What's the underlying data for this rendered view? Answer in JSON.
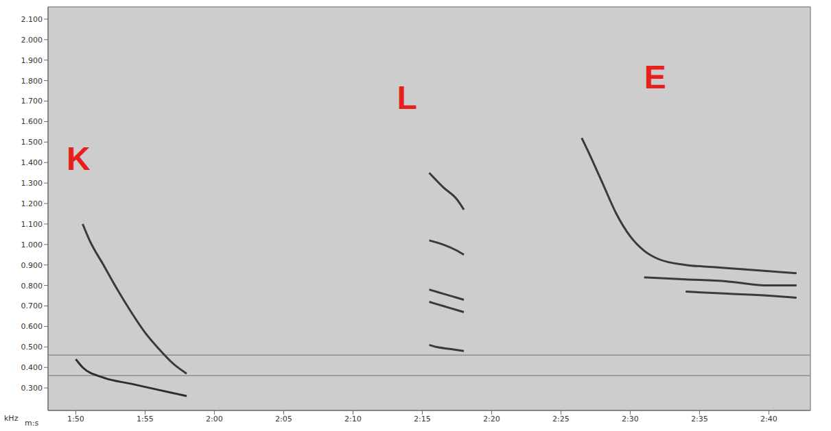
{
  "chart_data": {
    "type": "line",
    "x_label": "m:s",
    "y_label": "kHz",
    "xlim": [
      108,
      163
    ],
    "ylim": [
      0.19,
      2.16
    ],
    "xticks": [
      {
        "value": 110,
        "label": "1:50"
      },
      {
        "value": 115,
        "label": "1:55"
      },
      {
        "value": 120,
        "label": "2:00"
      },
      {
        "value": 125,
        "label": "2:05"
      },
      {
        "value": 130,
        "label": "2:10"
      },
      {
        "value": 135,
        "label": "2:15"
      },
      {
        "value": 140,
        "label": "2:20"
      },
      {
        "value": 145,
        "label": "2:25"
      },
      {
        "value": 150,
        "label": "2:30"
      },
      {
        "value": 155,
        "label": "2:35"
      },
      {
        "value": 160,
        "label": "2:40"
      }
    ],
    "yticks": [
      {
        "value": 0.3,
        "label": "0.300"
      },
      {
        "value": 0.4,
        "label": "0.400"
      },
      {
        "value": 0.5,
        "label": "0.500"
      },
      {
        "value": 0.6,
        "label": "0.600"
      },
      {
        "value": 0.7,
        "label": "0.700"
      },
      {
        "value": 0.8,
        "label": "0.800"
      },
      {
        "value": 0.9,
        "label": "0.900"
      },
      {
        "value": 1.0,
        "label": "1.000"
      },
      {
        "value": 1.1,
        "label": "1.100"
      },
      {
        "value": 1.2,
        "label": "1.200"
      },
      {
        "value": 1.3,
        "label": "1.300"
      },
      {
        "value": 1.4,
        "label": "1.400"
      },
      {
        "value": 1.5,
        "label": "1.500"
      },
      {
        "value": 1.6,
        "label": "1.600"
      },
      {
        "value": 1.7,
        "label": "1.700"
      },
      {
        "value": 1.8,
        "label": "1.800"
      },
      {
        "value": 1.9,
        "label": "1.900"
      },
      {
        "value": 2.0,
        "label": "2.000"
      },
      {
        "value": 2.1,
        "label": "2.100"
      }
    ],
    "grid": false,
    "series": [
      {
        "color": "#909090",
        "x": [
          108,
          163
        ],
        "values": [
          0.46,
          0.46
        ]
      },
      {
        "color": "#909090",
        "x": [
          108,
          163
        ],
        "values": [
          0.36,
          0.36
        ]
      },
      {
        "color": "#3a3a3a",
        "x": [
          110.5,
          111,
          112,
          113,
          114,
          115,
          116,
          117,
          118
        ],
        "values": [
          1.1,
          1.02,
          0.9,
          0.78,
          0.67,
          0.57,
          0.49,
          0.42,
          0.37
        ]
      },
      {
        "color": "#2e2e2e",
        "x": [
          110,
          110.5,
          112,
          114,
          116,
          118
        ],
        "values": [
          0.44,
          0.4,
          0.35,
          0.32,
          0.29,
          0.26
        ]
      },
      {
        "color": "#3a3a3a",
        "x": [
          135.5,
          136.5,
          137.5,
          138
        ],
        "values": [
          1.35,
          1.28,
          1.22,
          1.17
        ]
      },
      {
        "color": "#3a3a3a",
        "x": [
          135.5,
          136.5,
          137.5,
          138
        ],
        "values": [
          1.02,
          1.0,
          0.97,
          0.95
        ]
      },
      {
        "color": "#3a3a3a",
        "x": [
          135.5,
          136.5,
          137.5,
          138
        ],
        "values": [
          0.78,
          0.76,
          0.74,
          0.73
        ]
      },
      {
        "color": "#3a3a3a",
        "x": [
          135.5,
          136.5,
          137.5,
          138
        ],
        "values": [
          0.72,
          0.7,
          0.68,
          0.67
        ]
      },
      {
        "color": "#3a3a3a",
        "x": [
          135.5,
          136,
          137,
          138
        ],
        "values": [
          0.51,
          0.5,
          0.49,
          0.48
        ]
      },
      {
        "color": "#3a3a3a",
        "x": [
          146.5,
          147,
          148,
          149,
          150,
          151,
          152,
          154,
          156,
          158,
          160,
          162
        ],
        "values": [
          1.52,
          1.45,
          1.3,
          1.15,
          1.04,
          0.97,
          0.93,
          0.9,
          0.89,
          0.88,
          0.87,
          0.86
        ]
      },
      {
        "color": "#3a3a3a",
        "x": [
          151,
          154,
          157,
          160,
          162
        ],
        "values": [
          0.84,
          0.83,
          0.82,
          0.8,
          0.8
        ]
      },
      {
        "color": "#3a3a3a",
        "x": [
          154,
          157,
          160,
          162
        ],
        "values": [
          0.77,
          0.76,
          0.75,
          0.74
        ]
      }
    ],
    "annotations": [
      {
        "text": "K",
        "x": 110.2,
        "y": 1.42,
        "color": "#e8201c"
      },
      {
        "text": "L",
        "x": 133.9,
        "y": 1.72,
        "color": "#e8201c"
      },
      {
        "text": "E",
        "x": 151.8,
        "y": 1.82,
        "color": "#e8201c"
      }
    ]
  }
}
